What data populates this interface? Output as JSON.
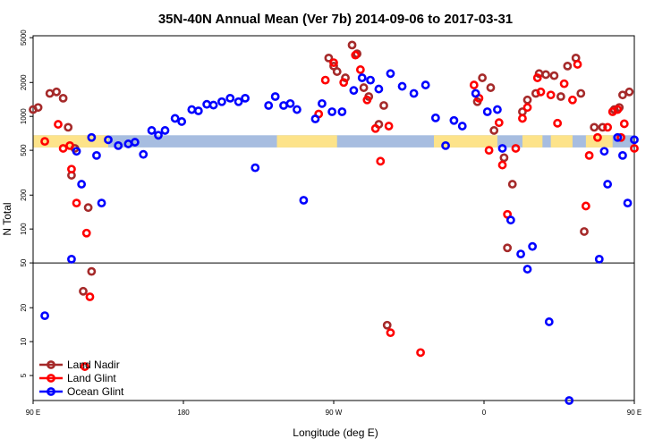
{
  "chart_data": {
    "type": "scatter",
    "title": "35N-40N Annual Mean (Ver 7b)   2014-09-06 to 2017-03-31",
    "xlabel": "Longitude (deg E)",
    "ylabel": "N Total",
    "xlim": [
      90,
      450
    ],
    "ylim": [
      3,
      5200
    ],
    "yscale": "log",
    "x_ticks": [
      {
        "value": 90,
        "label": "90 E"
      },
      {
        "value": 180,
        "label": "180"
      },
      {
        "value": 270,
        "label": "90 W"
      },
      {
        "value": 360,
        "label": "0"
      },
      {
        "value": 450,
        "label": "90 E"
      },
      {
        "value": 540,
        "label": "180"
      }
    ],
    "y_ticks": [
      {
        "value": 5,
        "label": "5"
      },
      {
        "value": 10,
        "label": "10"
      },
      {
        "value": 20,
        "label": "20"
      },
      {
        "value": 50,
        "label": "50"
      },
      {
        "value": 100,
        "label": "100"
      },
      {
        "value": 200,
        "label": "200"
      },
      {
        "value": 500,
        "label": "500"
      },
      {
        "value": 1000,
        "label": "1000"
      },
      {
        "value": 2000,
        "label": "2000"
      },
      {
        "value": 5000,
        "label": "5000"
      }
    ],
    "reference_line": 50,
    "land_mask_band": {
      "y_range": [
        530,
        680
      ],
      "land_color": "#fde38a",
      "ocean_color": "#a7bde0",
      "land_intervals": [
        [
          90,
          135
        ],
        [
          236,
          272
        ],
        [
          330,
          368
        ],
        [
          383,
          395
        ],
        [
          400,
          413
        ],
        [
          421,
          437
        ],
        [
          467,
          495
        ],
        [
          501,
          513
        ],
        [
          521,
          540
        ]
      ]
    },
    "legend": {
      "position": "bottom-left"
    },
    "series": [
      {
        "name": "Land Nadir",
        "color": "#a52a2a",
        "points": [
          [
            90,
            1150
          ],
          [
            93,
            1200
          ],
          [
            100,
            1600
          ],
          [
            104,
            1650
          ],
          [
            108,
            1450
          ],
          [
            111,
            800
          ],
          [
            113,
            300
          ],
          [
            115,
            520
          ],
          [
            120,
            28
          ],
          [
            123,
            155
          ],
          [
            125,
            42
          ],
          [
            267,
            3300
          ],
          [
            270,
            2800
          ],
          [
            272,
            2500
          ],
          [
            277,
            2200
          ],
          [
            281,
            4300
          ],
          [
            284,
            3600
          ],
          [
            288,
            1800
          ],
          [
            291,
            1500
          ],
          [
            297,
            850
          ],
          [
            300,
            1250
          ],
          [
            302,
            14
          ],
          [
            356,
            1350
          ],
          [
            359,
            2200
          ],
          [
            364,
            1800
          ],
          [
            366,
            750
          ],
          [
            372,
            430
          ],
          [
            374,
            68
          ],
          [
            377,
            250
          ],
          [
            383,
            1100
          ],
          [
            386,
            1400
          ],
          [
            391,
            1600
          ],
          [
            393,
            2400
          ],
          [
            397,
            2350
          ],
          [
            402,
            2300
          ],
          [
            406,
            1500
          ],
          [
            410,
            2800
          ],
          [
            415,
            3300
          ],
          [
            418,
            1600
          ],
          [
            420,
            95
          ],
          [
            426,
            800
          ],
          [
            431,
            800
          ],
          [
            438,
            1150
          ],
          [
            441,
            1200
          ],
          [
            443,
            1550
          ],
          [
            447,
            1650
          ],
          [
            451,
            1450
          ],
          [
            453,
            800
          ],
          [
            455,
            300
          ],
          [
            457,
            520
          ],
          [
            462,
            28
          ],
          [
            464,
            155
          ],
          [
            466,
            42
          ]
        ]
      },
      {
        "name": "Land Glint",
        "color": "#ff0000",
        "points": [
          [
            97,
            600
          ],
          [
            105,
            850
          ],
          [
            108,
            520
          ],
          [
            112,
            550
          ],
          [
            113,
            340
          ],
          [
            116,
            170
          ],
          [
            121,
            6
          ],
          [
            122,
            92
          ],
          [
            124,
            25
          ],
          [
            261,
            1050
          ],
          [
            265,
            2100
          ],
          [
            270,
            3000
          ],
          [
            276,
            2000
          ],
          [
            283,
            3500
          ],
          [
            286,
            2600
          ],
          [
            290,
            1400
          ],
          [
            295,
            780
          ],
          [
            298,
            400
          ],
          [
            303,
            820
          ],
          [
            304,
            12
          ],
          [
            322,
            8
          ],
          [
            354,
            1900
          ],
          [
            357,
            1450
          ],
          [
            363,
            500
          ],
          [
            369,
            880
          ],
          [
            371,
            370
          ],
          [
            374,
            135
          ],
          [
            379,
            520
          ],
          [
            383,
            960
          ],
          [
            386,
            1200
          ],
          [
            392,
            2200
          ],
          [
            394,
            1650
          ],
          [
            400,
            1550
          ],
          [
            404,
            870
          ],
          [
            408,
            1950
          ],
          [
            413,
            1400
          ],
          [
            416,
            2900
          ],
          [
            421,
            160
          ],
          [
            423,
            450
          ],
          [
            428,
            650
          ],
          [
            434,
            800
          ],
          [
            437,
            1100
          ],
          [
            440,
            1150
          ],
          [
            442,
            650
          ],
          [
            444,
            860
          ],
          [
            450,
            520
          ],
          [
            455,
            340
          ],
          [
            458,
            170
          ],
          [
            463,
            6
          ],
          [
            465,
            92
          ],
          [
            467,
            25
          ]
        ]
      },
      {
        "name": "Ocean Glint",
        "color": "#0000ff",
        "points": [
          [
            97,
            17
          ],
          [
            113,
            54
          ],
          [
            116,
            490
          ],
          [
            119,
            250
          ],
          [
            125,
            650
          ],
          [
            128,
            450
          ],
          [
            131,
            170
          ],
          [
            135,
            620
          ],
          [
            141,
            550
          ],
          [
            147,
            570
          ],
          [
            151,
            590
          ],
          [
            156,
            460
          ],
          [
            161,
            750
          ],
          [
            165,
            680
          ],
          [
            169,
            750
          ],
          [
            175,
            960
          ],
          [
            179,
            900
          ],
          [
            185,
            1150
          ],
          [
            189,
            1120
          ],
          [
            194,
            1280
          ],
          [
            198,
            1260
          ],
          [
            203,
            1350
          ],
          [
            208,
            1450
          ],
          [
            213,
            1350
          ],
          [
            217,
            1450
          ],
          [
            223,
            350
          ],
          [
            231,
            1250
          ],
          [
            235,
            1500
          ],
          [
            240,
            1250
          ],
          [
            244,
            1300
          ],
          [
            248,
            1150
          ],
          [
            252,
            180
          ],
          [
            259,
            950
          ],
          [
            263,
            1300
          ],
          [
            269,
            1100
          ],
          [
            275,
            1100
          ],
          [
            282,
            1700
          ],
          [
            287,
            2200
          ],
          [
            292,
            2100
          ],
          [
            297,
            1750
          ],
          [
            304,
            2400
          ],
          [
            311,
            1850
          ],
          [
            318,
            1600
          ],
          [
            325,
            1900
          ],
          [
            331,
            970
          ],
          [
            337,
            550
          ],
          [
            342,
            920
          ],
          [
            347,
            820
          ],
          [
            355,
            1600
          ],
          [
            362,
            1100
          ],
          [
            368,
            1150
          ],
          [
            371,
            520
          ],
          [
            376,
            120
          ],
          [
            382,
            60
          ],
          [
            386,
            44
          ],
          [
            389,
            70
          ],
          [
            399,
            15
          ],
          [
            411,
            3
          ],
          [
            429,
            54
          ],
          [
            432,
            490
          ],
          [
            434,
            250
          ],
          [
            440,
            650
          ],
          [
            443,
            450
          ],
          [
            446,
            170
          ],
          [
            450,
            620
          ],
          [
            456,
            550
          ],
          [
            462,
            570
          ],
          [
            466,
            590
          ],
          [
            471,
            460
          ],
          [
            476,
            750
          ],
          [
            480,
            680
          ]
        ]
      }
    ]
  }
}
